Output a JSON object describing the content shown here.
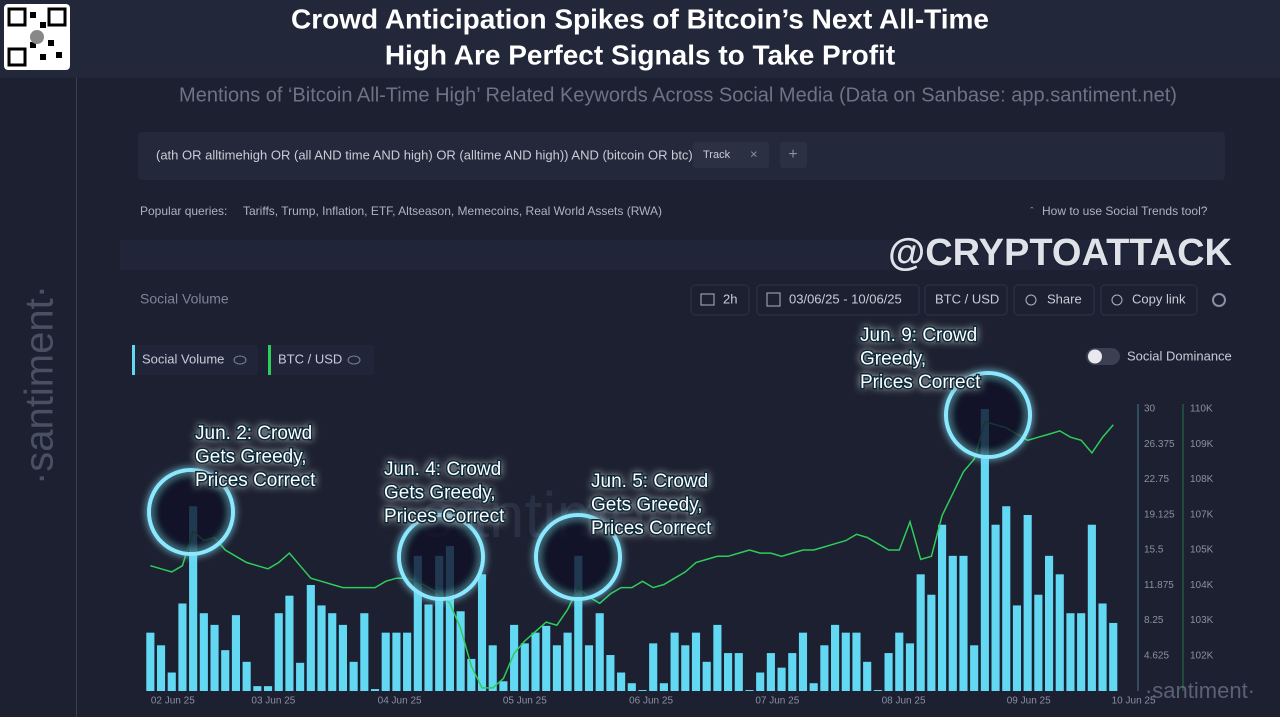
{
  "header": {
    "title": [
      "Crowd Anticipation Spikes of Bitcoin’s Next All-Time",
      "High Are Perfect Signals to Take Profit"
    ],
    "subtitle": "Mentions of ‘Bitcoin All-Time High’ Related Keywords Across Social Media (Data on Sanbase: app.santiment.net)"
  },
  "brand": {
    "side": "·santiment·",
    "watermark": "@CRYPTOATTACK",
    "chart_watermark": "santiment",
    "corner": "·santiment·"
  },
  "search": {
    "query": "(ath OR alltimehigh OR (all AND time AND high) OR (alltime AND high)) AND (bitcoin OR btc)",
    "tag": "Track",
    "popular_label": "Popular queries:",
    "popular": "Tariffs, Trump, Inflation, ETF, Altseason, Memecoins, Real World Assets (RWA)",
    "help": "How to use Social Trends tool?"
  },
  "toolbar": {
    "panel_title": "Social Volume",
    "interval": "2h",
    "dates": "03/06/25 - 10/06/25",
    "pair": "BTC / USD",
    "share": "Share",
    "copy": "Copy link",
    "toggle": "Social Dominance"
  },
  "chart_data": {
    "type": "combo",
    "series": [
      {
        "name": "Social Volume",
        "type": "bar",
        "color": "#62d8f2",
        "values": [
          7,
          5.7,
          2.9,
          10,
          20,
          9,
          7.8,
          5.2,
          8.8,
          4,
          1.5,
          1.5,
          9,
          10.8,
          3.9,
          11.9,
          9.8,
          9,
          7.8,
          4,
          9,
          1.2,
          7,
          7,
          7,
          14.9,
          9.9,
          14.9,
          15.9,
          9.2,
          4.3,
          13,
          5.7,
          2,
          7.8,
          5.9,
          7,
          7.7,
          5.7,
          7,
          14.9,
          5.7,
          9,
          4.7,
          2.9,
          1.8,
          1.1,
          5.9,
          1.8,
          7,
          5.7,
          7,
          4,
          7.8,
          4.9,
          4.9,
          1.1,
          2.9,
          4.9,
          3.4,
          4.9,
          7,
          1.8,
          5.7,
          7.8,
          7,
          7,
          4,
          1.1,
          4.9,
          7,
          5.9,
          13,
          10.9,
          18.1,
          14.9,
          14.9,
          5.7,
          30,
          18.1,
          20,
          9.8,
          19.1,
          10.9,
          14.9,
          13,
          9,
          9,
          18.1,
          10,
          8
        ]
      },
      {
        "name": "BTC / USD",
        "type": "line",
        "axis": "y2",
        "color": "#2ecc5a",
        "values": [
          105000,
          104900,
          104800,
          105000,
          106100,
          105800,
          105900,
          105500,
          105300,
          105100,
          105000,
          104900,
          105100,
          105400,
          105000,
          104600,
          104500,
          104400,
          104300,
          104300,
          104300,
          104300,
          104500,
          104600,
          104600,
          104500,
          104300,
          104100,
          103800,
          103000,
          101800,
          101100,
          101100,
          101400,
          102200,
          102600,
          102900,
          103200,
          103100,
          103600,
          104300,
          104000,
          103800,
          104100,
          104300,
          104300,
          104500,
          104300,
          104400,
          104600,
          104800,
          105100,
          105200,
          105300,
          105300,
          105400,
          105500,
          105400,
          105400,
          105300,
          105400,
          105500,
          105500,
          105600,
          105700,
          105800,
          106000,
          105900,
          105700,
          105500,
          105500,
          106400,
          105200,
          105300,
          106600,
          107300,
          108000,
          108400,
          109600,
          109500,
          109400,
          109200,
          109000,
          109100,
          109200,
          109300,
          109100,
          109000,
          108600,
          109100,
          109500
        ]
      }
    ],
    "xlim": [
      -0.5,
      92.5
    ],
    "xticks": [
      {
        "value": 2.1,
        "label": "02 Jun 25"
      },
      {
        "value": 11.5,
        "label": "03 Jun 25"
      },
      {
        "value": 23.3,
        "label": "04 Jun 25"
      },
      {
        "value": 35,
        "label": "05 Jun 25"
      },
      {
        "value": 46.8,
        "label": "06 Jun 25"
      },
      {
        "value": 58.6,
        "label": "07 Jun 25"
      },
      {
        "value": 70.4,
        "label": "08 Jun 25"
      },
      {
        "value": 82.1,
        "label": "09 Jun 25"
      },
      {
        "value": 91.9,
        "label": "10 Jun 25"
      }
    ],
    "ylim": [
      1,
      30
    ],
    "yticks": [
      4.625,
      8.25,
      11.875,
      15.5,
      19.125,
      22.75,
      26.375,
      30
    ],
    "y2lim": [
      101000,
      110000
    ],
    "y2ticks": [
      {
        "value": 102125,
        "label": "102K"
      },
      {
        "value": 103250,
        "label": "103K"
      },
      {
        "value": 104375,
        "label": "104K"
      },
      {
        "value": 105500,
        "label": "105K"
      },
      {
        "value": 106625,
        "label": "107K"
      },
      {
        "value": 107750,
        "label": "108K"
      },
      {
        "value": 108875,
        "label": "109K"
      },
      {
        "value": 110000,
        "label": "110K"
      }
    ],
    "grid": false,
    "annotations": [
      [
        "Jun. 2: Crowd",
        "Gets Greedy,",
        "Prices Correct"
      ],
      [
        "Jun. 4: Crowd",
        "Gets Greedy,",
        "Prices Correct"
      ],
      [
        "Jun. 5: Crowd",
        "Gets Greedy,",
        "Prices Correct"
      ],
      [
        "Jun. 9: Crowd",
        "Greedy,",
        "Prices Correct"
      ]
    ]
  }
}
